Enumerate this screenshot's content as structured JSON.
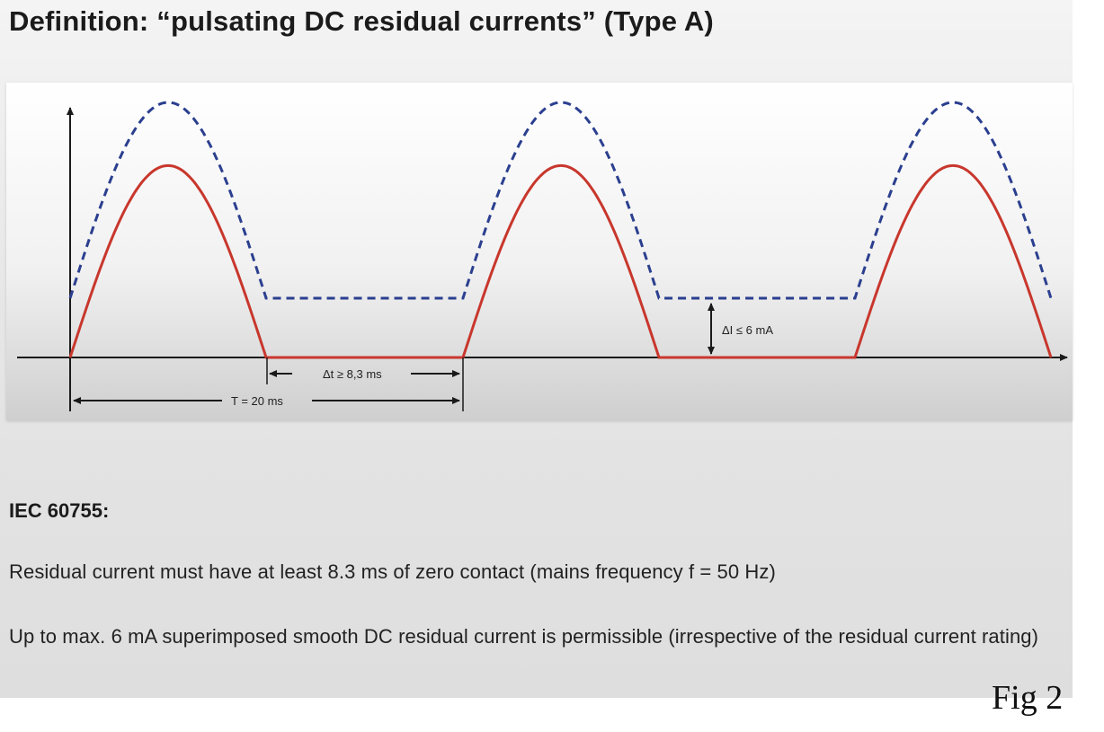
{
  "title": "Definition: “pulsating DC residual currents” (Type A)",
  "diagram": {
    "annotations": {
      "delta_i": "ΔI ≤ 6 mA",
      "delta_t": "Δt ≥ 8,3 ms",
      "period": "T = 20 ms"
    },
    "colors": {
      "pulsating_current": "#c8372d",
      "with_dc_offset": "#2b3f8f",
      "axes": "#1a1a1a"
    }
  },
  "standard": {
    "label": "IEC 60755:",
    "para_1": "Residual current must have at least 8.3 ms of zero contact (mains frequency f = 50 Hz)",
    "para_2": "Up to max. 6 mA superimposed smooth DC residual current is permissible (irrespective of the residual current rating)"
  },
  "figure_label": "Fig 2"
}
